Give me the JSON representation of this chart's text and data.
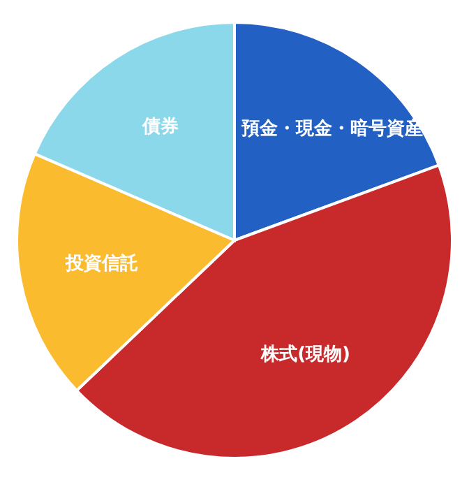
{
  "chart_data": {
    "type": "pie",
    "categories": [
      "預金・現金・暗号資産",
      "株式(現物)",
      "投資信託",
      "債券"
    ],
    "values": [
      19.4,
      43.5,
      18.6,
      18.5
    ],
    "colors": [
      "#2360c4",
      "#c8292a",
      "#fbbb2e",
      "#8ad8ea"
    ]
  }
}
